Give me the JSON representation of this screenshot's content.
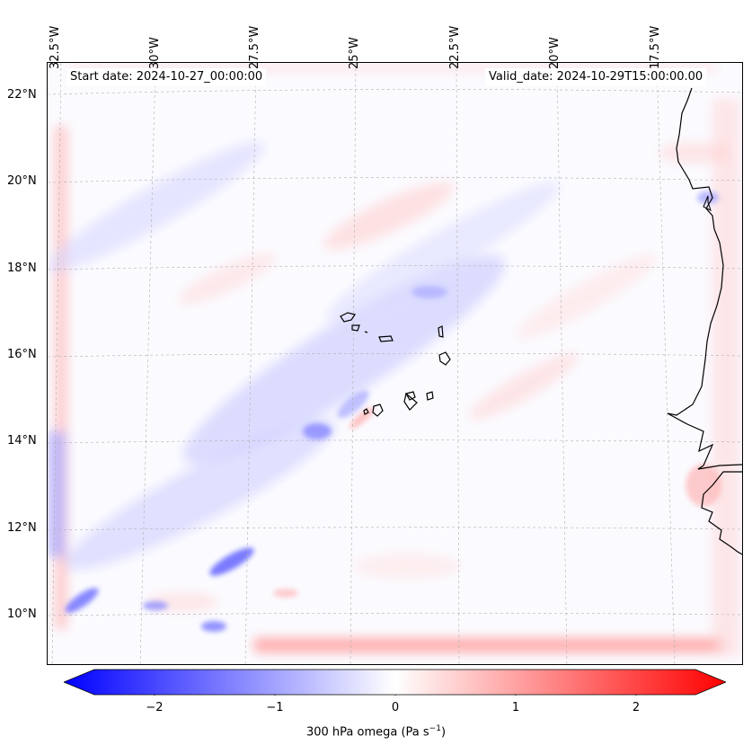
{
  "map": {
    "start_date": "Start date: 2024-10-27_00:00:00",
    "valid_date": "Valid_date: 2024-10-29T15:00:00.00",
    "lat_labels": [
      "22°N",
      "20°N",
      "18°N",
      "16°N",
      "14°N",
      "12°N",
      "10°N"
    ],
    "lon_labels": [
      "32.5°W",
      "30°W",
      "27.5°W",
      "25°W",
      "22.5°W",
      "20°W",
      "17.5°W"
    ],
    "field": "300 hPa omega",
    "colormap": "bwr",
    "colors": {
      "negative": "#0000ff",
      "zero": "#ffffff",
      "positive": "#ff0000",
      "coastline": "#000000",
      "gridline": "#b0b0b0"
    }
  },
  "colorbar": {
    "ticks": [
      "−2",
      "−1",
      "0",
      "1",
      "2"
    ],
    "range": [
      -2.7,
      2.7
    ],
    "label": "300 hPa omega (Pa s",
    "label_sup": "−1",
    "label_end": ")"
  }
}
